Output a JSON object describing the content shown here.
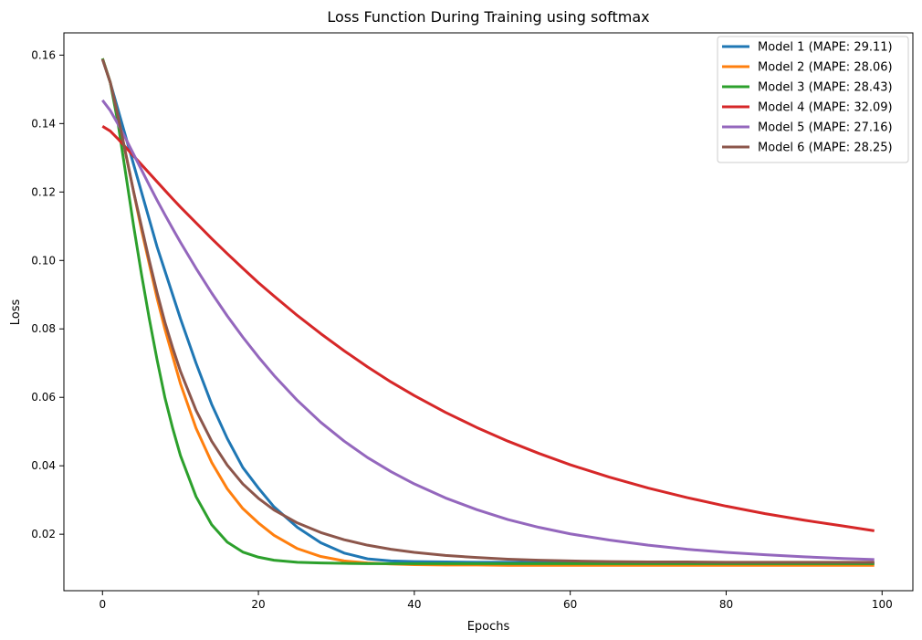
{
  "chart_data": {
    "type": "line",
    "title": "Loss Function During Training using softmax",
    "xlabel": "Epochs",
    "ylabel": "Loss",
    "xlim": [
      -4.95,
      103.95
    ],
    "ylim": [
      0.0035,
      0.1665
    ],
    "x_ticks": [
      0,
      20,
      40,
      60,
      80,
      100
    ],
    "y_ticks": [
      0.02,
      0.04,
      0.06,
      0.08,
      0.1,
      0.12,
      0.14,
      0.16
    ],
    "x_tick_labels": [
      "0",
      "20",
      "40",
      "60",
      "80",
      "100"
    ],
    "y_tick_labels": [
      "0.02",
      "0.04",
      "0.06",
      "0.08",
      "0.10",
      "0.12",
      "0.14",
      "0.16"
    ],
    "grid": false,
    "legend_position": "top-right",
    "x": [
      0,
      1,
      2,
      3,
      4,
      5,
      6,
      7,
      8,
      9,
      10,
      12,
      14,
      16,
      18,
      20,
      22,
      25,
      28,
      31,
      34,
      37,
      40,
      44,
      48,
      52,
      56,
      60,
      65,
      70,
      75,
      80,
      85,
      90,
      95,
      99
    ],
    "series": [
      {
        "name": "Model 1 (MAPE: 29.11)",
        "color": "#1f77b4",
        "values": [
          0.159,
          0.152,
          0.144,
          0.136,
          0.128,
          0.12,
          0.112,
          0.104,
          0.097,
          0.09,
          0.083,
          0.07,
          0.058,
          0.048,
          0.0395,
          0.0335,
          0.028,
          0.022,
          0.0175,
          0.0145,
          0.0128,
          0.0122,
          0.012,
          0.0119,
          0.0118,
          0.0118,
          0.0117,
          0.0117,
          0.0117,
          0.0117,
          0.0117,
          0.0117,
          0.0117,
          0.0117,
          0.0116,
          0.0116
        ]
      },
      {
        "name": "Model 2 (MAPE: 28.06)",
        "color": "#ff7f0e",
        "values": [
          0.159,
          0.152,
          0.142,
          0.131,
          0.12,
          0.109,
          0.099,
          0.089,
          0.08,
          0.072,
          0.064,
          0.051,
          0.041,
          0.0333,
          0.0275,
          0.0233,
          0.0197,
          0.0158,
          0.0135,
          0.0122,
          0.0116,
          0.0113,
          0.0111,
          0.011,
          0.011,
          0.0109,
          0.0109,
          0.0109,
          0.0109,
          0.0109,
          0.0109,
          0.0109,
          0.0109,
          0.0109,
          0.0109,
          0.0109
        ]
      },
      {
        "name": "Model 3 (MAPE: 28.43)",
        "color": "#2ca02c",
        "values": [
          0.159,
          0.152,
          0.14,
          0.125,
          0.11,
          0.096,
          0.083,
          0.071,
          0.06,
          0.051,
          0.043,
          0.031,
          0.0228,
          0.0177,
          0.0148,
          0.0133,
          0.0124,
          0.0118,
          0.0116,
          0.0115,
          0.0114,
          0.0114,
          0.0114,
          0.0114,
          0.0114,
          0.0114,
          0.0114,
          0.0114,
          0.0114,
          0.0114,
          0.0114,
          0.0114,
          0.0114,
          0.0114,
          0.0114,
          0.0114
        ]
      },
      {
        "name": "Model 4 (MAPE: 32.09)",
        "color": "#d62728",
        "values": [
          0.1392,
          0.1378,
          0.1355,
          0.133,
          0.1305,
          0.128,
          0.1255,
          0.123,
          0.1205,
          0.118,
          0.1156,
          0.111,
          0.1064,
          0.102,
          0.0977,
          0.0935,
          0.0896,
          0.0839,
          0.0786,
          0.0736,
          0.0689,
          0.0645,
          0.0605,
          0.0556,
          0.0512,
          0.0472,
          0.0436,
          0.0403,
          0.0367,
          0.0335,
          0.0307,
          0.0282,
          0.026,
          0.0241,
          0.0224,
          0.021
        ]
      },
      {
        "name": "Model 5 (MAPE: 27.16)",
        "color": "#9467bd",
        "values": [
          0.1468,
          0.1438,
          0.1398,
          0.1355,
          0.131,
          0.1265,
          0.122,
          0.1176,
          0.1134,
          0.1093,
          0.1053,
          0.0977,
          0.0905,
          0.0838,
          0.0776,
          0.0718,
          0.0664,
          0.0591,
          0.0527,
          0.0472,
          0.0424,
          0.0383,
          0.0347,
          0.0306,
          0.0272,
          0.0243,
          0.022,
          0.0201,
          0.0183,
          0.0168,
          0.0156,
          0.0147,
          0.014,
          0.0134,
          0.0129,
          0.0126
        ]
      },
      {
        "name": "Model 6 (MAPE: 28.25)",
        "color": "#8c564b",
        "values": [
          0.1588,
          0.152,
          0.142,
          0.131,
          0.12,
          0.11,
          0.1,
          0.0906,
          0.082,
          0.0745,
          0.0676,
          0.0562,
          0.0472,
          0.0402,
          0.0347,
          0.0305,
          0.0271,
          0.0233,
          0.0205,
          0.0184,
          0.0168,
          0.0156,
          0.0147,
          0.0138,
          0.0132,
          0.0127,
          0.0124,
          0.0122,
          0.012,
          0.0119,
          0.0119,
          0.0118,
          0.0118,
          0.0118,
          0.0118,
          0.0118
        ]
      }
    ]
  }
}
